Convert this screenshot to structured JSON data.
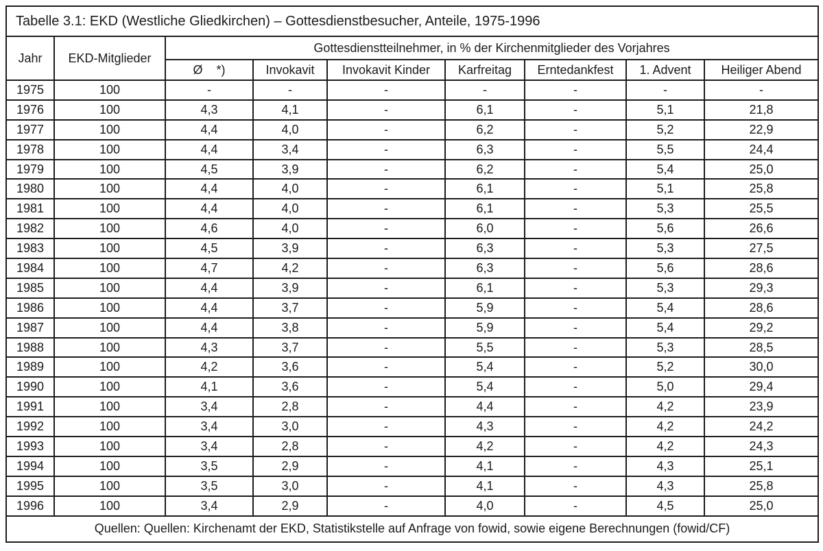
{
  "table": {
    "title": "Tabelle 3.1: EKD (Westliche Gliedkirchen) – Gottesdienstbesucher, Anteile, 1975-1996",
    "header": {
      "jahr": "Jahr",
      "mitglieder": "EKD-Mitglieder",
      "group": "Gottesdienstteilnehmer, in % der Kirchenmitglieder des Vorjahres",
      "subcolumns": [
        "Ø    *)",
        "Invokavit",
        "Invokavit Kinder",
        "Karfreitag",
        "Erntedankfest",
        "1. Advent",
        "Heiliger Abend"
      ]
    },
    "rows": [
      {
        "jahr": "1975",
        "mitglieder": "100",
        "values": [
          "-",
          "-",
          "-",
          "-",
          "-",
          "-",
          "-"
        ]
      },
      {
        "jahr": "1976",
        "mitglieder": "100",
        "values": [
          "4,3",
          "4,1",
          "-",
          "6,1",
          "-",
          "5,1",
          "21,8"
        ]
      },
      {
        "jahr": "1977",
        "mitglieder": "100",
        "values": [
          "4,4",
          "4,0",
          "-",
          "6,2",
          "-",
          "5,2",
          "22,9"
        ]
      },
      {
        "jahr": "1978",
        "mitglieder": "100",
        "values": [
          "4,4",
          "3,4",
          "-",
          "6,3",
          "-",
          "5,5",
          "24,4"
        ]
      },
      {
        "jahr": "1979",
        "mitglieder": "100",
        "values": [
          "4,5",
          "3,9",
          "-",
          "6,2",
          "-",
          "5,4",
          "25,0"
        ]
      },
      {
        "jahr": "1980",
        "mitglieder": "100",
        "values": [
          "4,4",
          "4,0",
          "-",
          "6,1",
          "-",
          "5,1",
          "25,8"
        ]
      },
      {
        "jahr": "1981",
        "mitglieder": "100",
        "values": [
          "4,4",
          "4,0",
          "-",
          "6,1",
          "-",
          "5,3",
          "25,5"
        ]
      },
      {
        "jahr": "1982",
        "mitglieder": "100",
        "values": [
          "4,6",
          "4,0",
          "-",
          "6,0",
          "-",
          "5,6",
          "26,6"
        ]
      },
      {
        "jahr": "1983",
        "mitglieder": "100",
        "values": [
          "4,5",
          "3,9",
          "-",
          "6,3",
          "-",
          "5,3",
          "27,5"
        ]
      },
      {
        "jahr": "1984",
        "mitglieder": "100",
        "values": [
          "4,7",
          "4,2",
          "-",
          "6,3",
          "-",
          "5,6",
          "28,6"
        ]
      },
      {
        "jahr": "1985",
        "mitglieder": "100",
        "values": [
          "4,4",
          "3,9",
          "-",
          "6,1",
          "-",
          "5,3",
          "29,3"
        ]
      },
      {
        "jahr": "1986",
        "mitglieder": "100",
        "values": [
          "4,4",
          "3,7",
          "-",
          "5,9",
          "-",
          "5,4",
          "28,6"
        ]
      },
      {
        "jahr": "1987",
        "mitglieder": "100",
        "values": [
          "4,4",
          "3,8",
          "-",
          "5,9",
          "-",
          "5,4",
          "29,2"
        ]
      },
      {
        "jahr": "1988",
        "mitglieder": "100",
        "values": [
          "4,3",
          "3,7",
          "-",
          "5,5",
          "-",
          "5,3",
          "28,5"
        ]
      },
      {
        "jahr": "1989",
        "mitglieder": "100",
        "values": [
          "4,2",
          "3,6",
          "-",
          "5,4",
          "-",
          "5,2",
          "30,0"
        ]
      },
      {
        "jahr": "1990",
        "mitglieder": "100",
        "values": [
          "4,1",
          "3,6",
          "-",
          "5,4",
          "-",
          "5,0",
          "29,4"
        ]
      },
      {
        "jahr": "1991",
        "mitglieder": "100",
        "values": [
          "3,4",
          "2,8",
          "-",
          "4,4",
          "-",
          "4,2",
          "23,9"
        ]
      },
      {
        "jahr": "1992",
        "mitglieder": "100",
        "values": [
          "3,4",
          "3,0",
          "-",
          "4,3",
          "-",
          "4,2",
          "24,2"
        ]
      },
      {
        "jahr": "1993",
        "mitglieder": "100",
        "values": [
          "3,4",
          "2,8",
          "-",
          "4,2",
          "-",
          "4,2",
          "24,3"
        ]
      },
      {
        "jahr": "1994",
        "mitglieder": "100",
        "values": [
          "3,5",
          "2,9",
          "-",
          "4,1",
          "-",
          "4,3",
          "25,1"
        ]
      },
      {
        "jahr": "1995",
        "mitglieder": "100",
        "values": [
          "3,5",
          "3,0",
          "-",
          "4,1",
          "-",
          "4,3",
          "25,8"
        ]
      },
      {
        "jahr": "1996",
        "mitglieder": "100",
        "values": [
          "3,4",
          "2,9",
          "-",
          "4,0",
          "-",
          "4,5",
          "25,0"
        ]
      }
    ],
    "source": "Quellen: Quellen: Kirchenamt der EKD, Statistikstelle auf Anfrage von fowid, sowie eigene Berechnungen (fowid/CF)",
    "colors": {
      "border": "#1c1c1c",
      "text": "#1a1a1a",
      "background": "#ffffff"
    }
  }
}
